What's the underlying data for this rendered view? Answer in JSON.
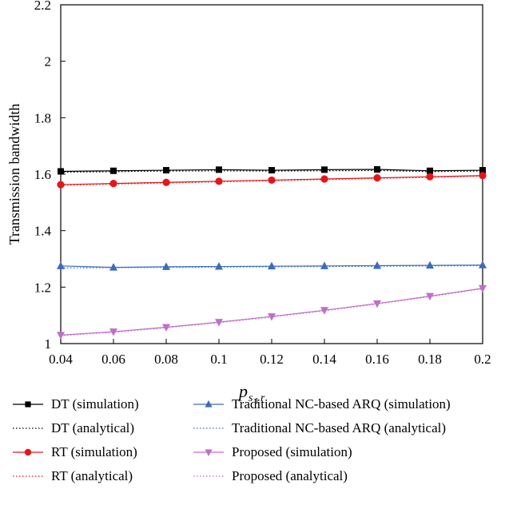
{
  "chart_data": {
    "type": "line",
    "ylabel": "Transmission bandwidth",
    "xlabel": "p",
    "xlabel_sub": "s",
    "xlabel_subsub": "1",
    "xlabel_sub_tail": "r",
    "xlim": [
      0.04,
      0.2
    ],
    "ylim": [
      1.0,
      2.2
    ],
    "x": [
      0.04,
      0.06,
      0.08,
      0.1,
      0.12,
      0.14,
      0.16,
      0.18,
      0.2
    ],
    "x_tick_labels": [
      "0.04",
      "0.06",
      "0.08",
      "0.1",
      "0.12",
      "0.14",
      "0.16",
      "0.18",
      "0.2"
    ],
    "y_ticks": [
      1.0,
      1.2,
      1.4,
      1.6,
      1.8,
      2.0,
      2.2
    ],
    "y_tick_labels": [
      "1",
      "1.2",
      "1.4",
      "1.6",
      "1.8",
      "2",
      "2.2"
    ],
    "grid": false,
    "legend_position": "bottom",
    "series": [
      {
        "name": "DT (simulation)",
        "color": "#000000",
        "marker": "square",
        "style": "solid",
        "values": [
          1.61,
          1.612,
          1.614,
          1.616,
          1.614,
          1.616,
          1.617,
          1.612,
          1.614
        ]
      },
      {
        "name": "DT (analytical)",
        "color": "#000000",
        "marker": "none",
        "style": "dotted",
        "values": [
          1.607,
          1.609,
          1.611,
          1.612,
          1.611,
          1.612,
          1.613,
          1.609,
          1.611
        ]
      },
      {
        "name": "RT (simulation)",
        "color": "#e8141b",
        "marker": "circle",
        "style": "solid",
        "values": [
          1.563,
          1.567,
          1.571,
          1.575,
          1.579,
          1.583,
          1.587,
          1.591,
          1.595
        ]
      },
      {
        "name": "RT (analytical)",
        "color": "#e8141b",
        "marker": "none",
        "style": "dotted",
        "values": [
          1.561,
          1.565,
          1.569,
          1.573,
          1.577,
          1.581,
          1.585,
          1.589,
          1.593
        ]
      },
      {
        "name": "Traditional NC-based ARQ (simulation)",
        "color": "#3a6cbf",
        "marker": "triangle-up",
        "style": "solid",
        "values": [
          1.275,
          1.27,
          1.272,
          1.273,
          1.274,
          1.275,
          1.276,
          1.277,
          1.278
        ]
      },
      {
        "name": "Traditional NC-based ARQ (analytical)",
        "color": "#3a6cbf",
        "marker": "none",
        "style": "dotted",
        "values": [
          1.268,
          1.269,
          1.27,
          1.271,
          1.272,
          1.273,
          1.274,
          1.275,
          1.276
        ]
      },
      {
        "name": "Proposed (simulation)",
        "color": "#c06ec8",
        "marker": "triangle-down",
        "style": "solid",
        "values": [
          1.03,
          1.042,
          1.058,
          1.076,
          1.096,
          1.118,
          1.142,
          1.168,
          1.196
        ]
      },
      {
        "name": "Proposed (analytical)",
        "color": "#c06ec8",
        "marker": "none",
        "style": "dotted",
        "values": [
          1.028,
          1.04,
          1.056,
          1.074,
          1.094,
          1.116,
          1.14,
          1.166,
          1.194
        ]
      }
    ]
  }
}
